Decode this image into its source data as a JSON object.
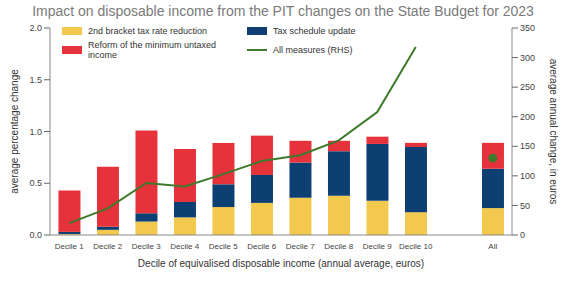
{
  "chart_data": {
    "type": "bar",
    "title": "Impact on disposable income from the PIT changes on the State Budget for 2023",
    "x_label": "Decile of equivalised disposable income (annual average, euros)",
    "y_label": "average percentage change",
    "y2_label": "average annual change, in euros",
    "categories": [
      "Decile 1",
      "Decile 2",
      "Decile 3",
      "Decile 4",
      "Decile 5",
      "Decile 6",
      "Decile 7",
      "Decile 8",
      "Decile 9",
      "Decile 10",
      null,
      "All"
    ],
    "stacked": true,
    "grid": false,
    "legend": "upper left",
    "ylim": [
      0,
      2
    ],
    "yticks": [
      {
        "value": 0,
        "label": "0.0"
      },
      {
        "value": 0.5,
        "label": "0.5"
      },
      {
        "value": 1,
        "label": "1.0"
      },
      {
        "value": 1.5,
        "label": "1.5"
      },
      {
        "value": 2,
        "label": "2.0"
      }
    ],
    "y2lim": [
      0,
      350
    ],
    "y2ticks": [
      0,
      50,
      100,
      150,
      200,
      250,
      300,
      350
    ],
    "series": [
      {
        "name": "2nd bracket tax rate reduction",
        "type": "bar",
        "color": "#f2c94c",
        "values": [
          0.01,
          0.05,
          0.13,
          0.17,
          0.27,
          0.31,
          0.36,
          0.38,
          0.33,
          0.22,
          null,
          0.26
        ]
      },
      {
        "name": "Tax schedule update",
        "type": "bar",
        "color": "#0d3f73",
        "values": [
          0.02,
          0.03,
          0.08,
          0.15,
          0.22,
          0.27,
          0.34,
          0.43,
          0.55,
          0.63,
          null,
          0.38
        ]
      },
      {
        "name": "Reform of the minimum untaxed income",
        "type": "bar",
        "color": "#e5323b",
        "values": [
          0.4,
          0.58,
          0.8,
          0.51,
          0.4,
          0.38,
          0.21,
          0.1,
          0.07,
          0.04,
          null,
          0.25
        ]
      },
      {
        "name": "All measures (RHS)",
        "type": "line",
        "axis": "y2",
        "color": "#3d7a2a",
        "values": [
          20,
          45,
          88,
          82,
          103,
          125,
          135,
          160,
          208,
          318,
          null,
          130
        ]
      }
    ]
  }
}
